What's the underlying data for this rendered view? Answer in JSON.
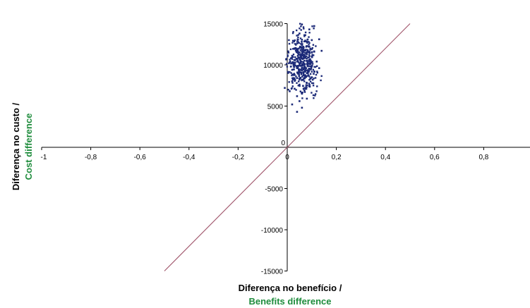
{
  "chart_data": {
    "type": "scatter",
    "title": "",
    "xlabel": "Diferença no benefício /",
    "xlabel_en": "Benefits difference",
    "ylabel": "Diferença no custo /",
    "ylabel_en": "Cost difference",
    "xlim": [
      -1,
      1
    ],
    "ylim": [
      -15000,
      15000
    ],
    "x_ticks": [
      "-1",
      "-0,8",
      "-0,6",
      "-0,4",
      "-0,2",
      "0",
      "0,2",
      "0,4",
      "0,6",
      "0,8"
    ],
    "x_tick_values": [
      -1,
      -0.8,
      -0.6,
      -0.4,
      -0.2,
      0,
      0.2,
      0.4,
      0.6,
      0.8
    ],
    "y_ticks": [
      "15000",
      "10000",
      "5000",
      "0",
      "-5000",
      "-10000",
      "-15000"
    ],
    "y_tick_values": [
      15000,
      10000,
      5000,
      0,
      -5000,
      -10000,
      -15000
    ],
    "grid": false,
    "reference_line": {
      "from": [
        -0.5,
        -15000
      ],
      "to": [
        0.5,
        15000
      ]
    },
    "scatter_cloud": {
      "x_center": 0.06,
      "x_spread": 0.03,
      "y_center": 10300,
      "y_spread": 1700,
      "x_min": -0.01,
      "x_max": 0.14,
      "y_min": 4300,
      "y_max": 15000
    },
    "series": [
      {
        "values": [
          [
            0.06,
            14900
          ],
          [
            0.11,
            14700
          ],
          [
            0.09,
            14300
          ],
          [
            0.05,
            13800
          ],
          [
            0.07,
            13600
          ],
          [
            0.13,
            13100
          ],
          [
            0.1,
            13000
          ],
          [
            0.08,
            12800
          ],
          [
            0.04,
            12600
          ],
          [
            0.06,
            12400
          ],
          [
            0.09,
            12200
          ],
          [
            0.03,
            12000
          ],
          [
            0.07,
            11800
          ],
          [
            0.11,
            11600
          ],
          [
            0.05,
            11500
          ],
          [
            0.08,
            11300
          ],
          [
            0.02,
            11100
          ],
          [
            0.1,
            11000
          ],
          [
            0.06,
            10800
          ],
          [
            0.04,
            10700
          ],
          [
            0.09,
            10600
          ],
          [
            0.07,
            10500
          ],
          [
            0.12,
            10400
          ],
          [
            0.01,
            10300
          ],
          [
            0.05,
            10200
          ],
          [
            0.08,
            10100
          ],
          [
            0.03,
            10000
          ],
          [
            0.06,
            9900
          ],
          [
            0.1,
            9800
          ],
          [
            0.07,
            9700
          ],
          [
            0.04,
            9600
          ],
          [
            0.09,
            9500
          ],
          [
            0.02,
            9400
          ],
          [
            0.06,
            9300
          ],
          [
            0.11,
            9200
          ],
          [
            0.05,
            9100
          ],
          [
            0.08,
            9000
          ],
          [
            0.03,
            8800
          ],
          [
            0.07,
            8700
          ],
          [
            0.1,
            8500
          ],
          [
            0.04,
            8400
          ],
          [
            0.06,
            8200
          ],
          [
            0.02,
            8000
          ],
          [
            0.08,
            7800
          ],
          [
            0.05,
            7600
          ],
          [
            0.09,
            7400
          ],
          [
            0.03,
            7100
          ],
          [
            0.07,
            6900
          ],
          [
            0.01,
            6800
          ],
          [
            0.06,
            6500
          ],
          [
            0.04,
            6200
          ],
          [
            0.08,
            5900
          ],
          [
            0.05,
            5600
          ],
          [
            0.02,
            5200
          ],
          [
            0.06,
            4800
          ],
          [
            0.04,
            4300
          ],
          [
            -0.01,
            7200
          ],
          [
            0.14,
            11700
          ],
          [
            0.13,
            9600
          ]
        ]
      }
    ]
  }
}
